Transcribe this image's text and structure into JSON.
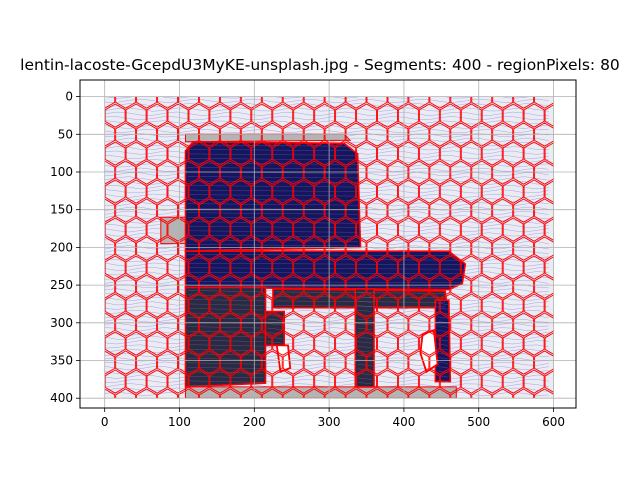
{
  "chart_data": {
    "type": "image",
    "title": "lentin-lacoste-GcepdU3MyKE-unsplash.jpg - Segments: 400 - regionPixels: 80",
    "xlabel": "",
    "ylabel": "",
    "xlim": [
      -33,
      630
    ],
    "ylim": [
      413,
      -22
    ],
    "image_extent": {
      "x": [
        0,
        600
      ],
      "y": [
        0,
        400
      ]
    },
    "x_ticks": [
      0,
      100,
      200,
      300,
      400,
      500,
      600
    ],
    "y_ticks": [
      0,
      50,
      100,
      150,
      200,
      250,
      300,
      350,
      400
    ],
    "grid": true,
    "image": {
      "background_color": "#ebebf2",
      "boundary_color": "#ff0000",
      "flow_line_color": "#4444ee",
      "dark_fill": "#2a2a45",
      "navy_fill": "#151560",
      "shadow_fill": "#b4b4b4",
      "chair_regions": [
        {
          "name": "backrest",
          "fill": "navy",
          "path": [
            [
              108,
              72
            ],
            [
              118,
              60
            ],
            [
              320,
              62
            ],
            [
              338,
              76
            ],
            [
              342,
              200
            ],
            [
              108,
              205
            ]
          ]
        },
        {
          "name": "seat",
          "fill": "navy",
          "path": [
            [
              108,
              205
            ],
            [
              460,
              205
            ],
            [
              482,
              222
            ],
            [
              478,
              248
            ],
            [
              460,
              256
            ],
            [
              108,
              253
            ]
          ]
        },
        {
          "name": "seat-base",
          "fill": "dark",
          "path": [
            [
              225,
              255
            ],
            [
              455,
              258
            ],
            [
              458,
              280
            ],
            [
              225,
              280
            ]
          ]
        },
        {
          "name": "front-left-leg",
          "fill": "dark",
          "path": [
            [
              108,
              253
            ],
            [
              215,
              253
            ],
            [
              215,
              380
            ],
            [
              108,
              385
            ]
          ]
        },
        {
          "name": "rear-leg",
          "fill": "dark",
          "path": [
            [
              335,
              255
            ],
            [
              360,
              255
            ],
            [
              360,
              385
            ],
            [
              335,
              385
            ]
          ]
        },
        {
          "name": "front-right-leg",
          "fill": "navy",
          "path": [
            [
              442,
              270
            ],
            [
              460,
              270
            ],
            [
              462,
              378
            ],
            [
              442,
              378
            ]
          ]
        },
        {
          "name": "left-gap",
          "fill": "dark",
          "path": [
            [
              215,
              285
            ],
            [
              240,
              285
            ],
            [
              240,
              330
            ],
            [
              215,
              330
            ]
          ]
        }
      ],
      "holes": [
        {
          "name": "right-hole",
          "path": [
            [
              425,
              315
            ],
            [
              440,
              310
            ],
            [
              445,
              355
            ],
            [
              430,
              365
            ],
            [
              422,
              340
            ]
          ]
        },
        {
          "name": "left-hole",
          "path": [
            [
              230,
              330
            ],
            [
              245,
              330
            ],
            [
              248,
              360
            ],
            [
              235,
              365
            ]
          ]
        }
      ],
      "shadow_regions": [
        {
          "name": "top-shadow",
          "path": [
            [
              108,
              50
            ],
            [
              320,
              50
            ],
            [
              328,
              58
            ],
            [
              108,
              60
            ]
          ]
        },
        {
          "name": "left-shadow",
          "path": [
            [
              75,
              160
            ],
            [
              108,
              160
            ],
            [
              108,
              195
            ],
            [
              75,
              195
            ]
          ]
        },
        {
          "name": "bottom-shadow",
          "path": [
            [
              108,
              385
            ],
            [
              470,
              385
            ],
            [
              470,
              400
            ],
            [
              108,
              400
            ]
          ]
        }
      ]
    }
  }
}
